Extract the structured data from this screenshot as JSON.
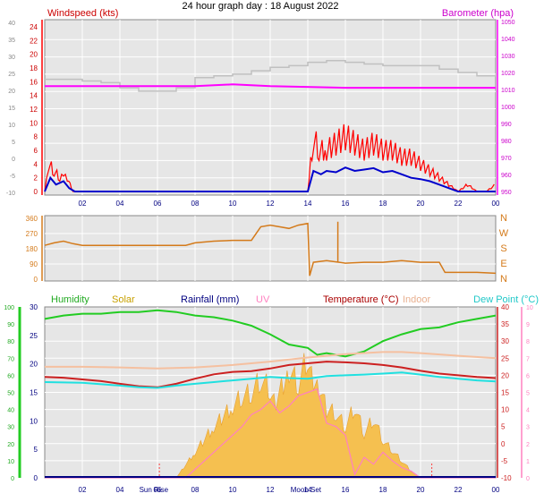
{
  "title": "24 hour graph day : 18 August 2022",
  "colors": {
    "panel_bg": "#e6e6e6",
    "gust": "#ff0000",
    "wind": "#0000cc",
    "baro": "#ff00ff",
    "baro_old": "#c0c0c0",
    "dir": "#d47a1a",
    "humidity": "#22cc22",
    "solar": "#f5c050",
    "rain": "#000080",
    "uv": "#ff80c0",
    "temp": "#cc2020",
    "indoor": "#f5c0a0",
    "dew": "#20e0e0"
  },
  "x_ticks": [
    "02",
    "04",
    "06",
    "08",
    "10",
    "12",
    "14",
    "16",
    "18",
    "20",
    "22",
    "00"
  ],
  "sun_labels": [
    "Sun Rise",
    "Moon Set"
  ],
  "chart_data": [
    {
      "type": "line",
      "title": "",
      "left_label": "Windspeed (kts)",
      "right_label": "Barometer (hpa)",
      "left_axis_outer": [
        "40",
        "35",
        "30",
        "25",
        "20",
        "15",
        "10",
        "5",
        "0",
        "-5",
        "-10"
      ],
      "left_axis_inner": [
        "24",
        "22",
        "20",
        "18",
        "16",
        "14",
        "12",
        "10",
        "8",
        "6",
        "4",
        "2",
        "0"
      ],
      "right_axis": [
        "1050",
        "1040",
        "1030",
        "1020",
        "1010",
        "1000",
        "990",
        "980",
        "970",
        "960",
        "950"
      ],
      "x_hours_range": [
        0,
        24
      ],
      "series": [
        {
          "name": "Windspeed (kts)",
          "key": "gust",
          "x": [
            0,
            0.2,
            0.5,
            0.8,
            1.0,
            1.2,
            1.5,
            14.0,
            14.3,
            14.6,
            15.0,
            15.5,
            16.0,
            16.5,
            17.0,
            17.5,
            18.0,
            18.5,
            19.0,
            19.5,
            20.0,
            20.5,
            21.0,
            21.5,
            22.0,
            22.5,
            23.0,
            23.5,
            24.0
          ],
          "values": [
            0,
            4,
            3,
            2,
            3,
            2,
            0,
            0,
            8,
            6,
            6,
            7,
            8,
            7,
            6,
            7,
            6,
            6,
            5,
            5,
            4,
            3,
            2,
            1,
            0,
            1,
            0,
            0,
            1
          ]
        },
        {
          "name": "Wind",
          "key": "wind",
          "x": [
            0,
            0.3,
            0.6,
            1.0,
            1.3,
            1.6,
            14.0,
            14.3,
            14.7,
            15.0,
            15.5,
            16.0,
            16.5,
            17.0,
            17.5,
            18.0,
            18.5,
            19.0,
            19.5,
            20.0,
            20.5,
            21.0,
            21.5,
            22.0,
            24.0
          ],
          "values": [
            0,
            2,
            1,
            1.5,
            0.5,
            0,
            0,
            3,
            2.5,
            3,
            2.8,
            3.5,
            3,
            3.2,
            3.4,
            2.8,
            3,
            2.5,
            2,
            1.8,
            1.5,
            1,
            0.5,
            0,
            0
          ]
        },
        {
          "name": "Barometer (hpa)",
          "key": "baro",
          "x": [
            0,
            4,
            8,
            10,
            12,
            16,
            20,
            24
          ],
          "values": [
            1012,
            1012,
            1012,
            1013,
            1012,
            1011,
            1011,
            1011
          ]
        },
        {
          "name": "Barometer previous",
          "key": "baro_old",
          "x": [
            0,
            1,
            2,
            3,
            4,
            5,
            6,
            7,
            8,
            9,
            10,
            11,
            12,
            13,
            14,
            15,
            16,
            17,
            18,
            19,
            20,
            21,
            22,
            23,
            24
          ],
          "values": [
            1016,
            1016,
            1015,
            1014,
            1011,
            1009,
            1009,
            1011,
            1017,
            1018,
            1019,
            1021,
            1023,
            1024,
            1026,
            1027,
            1026,
            1025,
            1024,
            1024,
            1024,
            1022,
            1020,
            1018,
            1018
          ]
        }
      ]
    },
    {
      "type": "line",
      "title": "",
      "left_axis": [
        "360",
        "270",
        "180",
        "90",
        "0"
      ],
      "right_axis": [
        "N",
        "W",
        "S",
        "E",
        "N"
      ],
      "series": [
        {
          "name": "Wind direction",
          "key": "dir",
          "x": [
            0,
            0.5,
            1,
            1.5,
            2,
            4,
            6,
            7.5,
            8,
            9,
            10,
            11,
            11.5,
            12,
            13,
            13.5,
            14,
            14.1,
            14.3,
            15,
            16,
            17,
            18,
            19,
            20,
            21,
            21.3,
            22,
            23,
            24
          ],
          "values": [
            200,
            215,
            225,
            210,
            200,
            200,
            200,
            200,
            215,
            225,
            230,
            230,
            310,
            320,
            300,
            320,
            330,
            20,
            100,
            110,
            95,
            100,
            100,
            110,
            100,
            100,
            40,
            40,
            40,
            35
          ]
        }
      ]
    },
    {
      "type": "area",
      "title": "",
      "labels": [
        "Humidity",
        "Solar",
        "Rainfall (mm)",
        "UV",
        "Temperature (°C)",
        "Indoor",
        "Dew Point (°C)"
      ],
      "left_axis_outer": [
        "100",
        "90",
        "80",
        "70",
        "60",
        "50",
        "40",
        "30",
        "20",
        "10",
        "0"
      ],
      "left_axis_inner": [
        "30",
        "25",
        "20",
        "15",
        "10",
        "5",
        "0"
      ],
      "right_axis_temp": [
        "40",
        "35",
        "30",
        "25",
        "20",
        "15",
        "10",
        "5",
        "0",
        "-5",
        "-10"
      ],
      "right_axis_uv": [
        "10",
        "9",
        "8",
        "7",
        "6",
        "5",
        "4",
        "3",
        "2",
        "1",
        "0"
      ],
      "series": [
        {
          "name": "Humidity",
          "key": "humidity",
          "x": [
            0,
            1,
            2,
            3,
            4,
            5,
            6,
            7,
            8,
            9,
            10,
            11,
            12,
            13,
            14,
            14.5,
            15,
            16,
            17,
            18,
            19,
            20,
            21,
            22,
            23,
            24
          ],
          "values": [
            93,
            95,
            96,
            96,
            97,
            97,
            98,
            97,
            95,
            94,
            92,
            89,
            84,
            78,
            76,
            72,
            73,
            71,
            74,
            80,
            84,
            87,
            88,
            91,
            93,
            95
          ]
        },
        {
          "name": "Temperature (°C)",
          "key": "temp",
          "x": [
            0,
            1,
            2,
            3,
            4,
            5,
            6,
            7,
            8,
            9,
            10,
            11,
            12,
            13,
            14,
            15,
            16,
            17,
            18,
            19,
            20,
            21,
            22,
            23,
            24
          ],
          "values": [
            19.5,
            19.3,
            18.8,
            18.3,
            17.5,
            16.8,
            16.5,
            17.5,
            19.0,
            20.3,
            21.0,
            21.2,
            22.0,
            23.0,
            23.5,
            24.0,
            23.8,
            23.5,
            23.0,
            22.3,
            21.3,
            20.5,
            20.0,
            19.5,
            19.2
          ]
        },
        {
          "name": "Dew Point (°C)",
          "key": "dew",
          "x": [
            0,
            2,
            4,
            5,
            6,
            7,
            8,
            9,
            10,
            11,
            12,
            13,
            14,
            15,
            16,
            17,
            18,
            19,
            20,
            21,
            22,
            23,
            24
          ],
          "values": [
            18.0,
            17.8,
            17.0,
            16.5,
            16.3,
            17.0,
            17.5,
            18.0,
            18.5,
            19.0,
            19.5,
            19.2,
            19.0,
            19.8,
            20.0,
            20.2,
            20.5,
            20.8,
            20.2,
            19.5,
            19.0,
            18.5,
            18.2
          ]
        },
        {
          "name": "Indoor",
          "key": "indoor",
          "x": [
            0,
            2,
            4,
            6,
            8,
            10,
            12,
            14,
            16,
            18,
            19,
            20,
            22,
            24
          ],
          "values": [
            22.5,
            22.5,
            22.3,
            22.0,
            22.3,
            23.0,
            24.0,
            25.2,
            26.2,
            26.8,
            26.8,
            26.5,
            25.7,
            25.0
          ]
        },
        {
          "name": "Solar",
          "key": "solar",
          "x": [
            0,
            7,
            8,
            9,
            10,
            10.5,
            11,
            11.5,
            12,
            12.3,
            13,
            13.5,
            14,
            14.3,
            14.6,
            15,
            15.5,
            16,
            16.5,
            17,
            17.5,
            18,
            18.5,
            19,
            19.5,
            20,
            24
          ],
          "values": [
            0,
            0,
            15,
            30,
            42,
            48,
            50,
            58,
            52,
            45,
            63,
            55,
            72,
            58,
            54,
            40,
            38,
            30,
            42,
            26,
            35,
            22,
            16,
            10,
            4,
            0,
            0
          ]
        },
        {
          "name": "UV",
          "key": "uv",
          "x": [
            0,
            7.5,
            8.5,
            9.5,
            10.5,
            11,
            11.5,
            12,
            12.5,
            13,
            13.5,
            14,
            14.5,
            15,
            15.5,
            16,
            16.5,
            17,
            17.5,
            18,
            18.5,
            19,
            19.5,
            20,
            24
          ],
          "values": [
            0,
            0,
            1,
            2,
            3,
            3.7,
            4,
            4.5,
            3.8,
            4.2,
            4.8,
            5.0,
            5.2,
            3.2,
            3.0,
            2.5,
            0.2,
            1.2,
            0.8,
            1.5,
            1.0,
            0.6,
            0.4,
            0,
            0
          ]
        },
        {
          "name": "Rainfall (mm)",
          "key": "rain",
          "x": [
            0,
            24
          ],
          "values": [
            0,
            0
          ]
        }
      ]
    }
  ]
}
